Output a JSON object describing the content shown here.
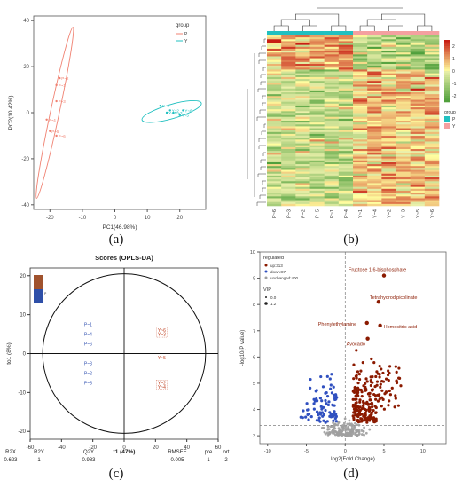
{
  "captions": {
    "a": "(a)",
    "b": "(b)",
    "c": "(c)",
    "d": "(d)"
  },
  "chart_data": [
    {
      "panel": "a",
      "type": "scatter",
      "title": "",
      "xlabel": "PC1(46.98%)",
      "ylabel": "PC2(10.42%)",
      "xlim": [
        -25,
        28
      ],
      "ylim": [
        -42,
        42
      ],
      "x_ticks": [
        -20,
        -10,
        0,
        10,
        20
      ],
      "y_ticks": [
        -40,
        -20,
        0,
        20,
        40
      ],
      "legend": {
        "title": "group",
        "position": "top-right"
      },
      "series": [
        {
          "name": "P",
          "color": "#f08070",
          "points": [
            {
              "x": -18,
              "y": 12,
              "label": "P~1"
            },
            {
              "x": -17,
              "y": 15,
              "label": "P~2"
            },
            {
              "x": -18,
              "y": 5,
              "label": "P~3"
            },
            {
              "x": -21,
              "y": -3,
              "label": "P~4"
            },
            {
              "x": -20,
              "y": -8,
              "label": "P~5"
            },
            {
              "x": -18,
              "y": -10,
              "label": "P~6"
            }
          ]
        },
        {
          "name": "Y",
          "color": "#20c0c0",
          "points": [
            {
              "x": 14,
              "y": 3,
              "label": "Y~1"
            },
            {
              "x": 17,
              "y": 1,
              "label": "Y~2"
            },
            {
              "x": 18,
              "y": 0,
              "label": "Y~3"
            },
            {
              "x": 16,
              "y": 0,
              "label": "Y~4"
            },
            {
              "x": 20,
              "y": -1,
              "label": "Y~5"
            },
            {
              "x": 21,
              "y": 1,
              "label": "Y~6"
            }
          ]
        }
      ]
    },
    {
      "panel": "b",
      "type": "heatmap",
      "columns": [
        "P~6",
        "P~3",
        "P~2",
        "P~5",
        "P~1",
        "P~4",
        "Y~1",
        "Y~4",
        "Y~2",
        "Y~3",
        "Y~5",
        "Y~6"
      ],
      "groups": [
        "P",
        "P",
        "P",
        "P",
        "P",
        "P",
        "Y",
        "Y",
        "Y",
        "Y",
        "Y",
        "Y"
      ],
      "colorbar_ticks": [
        2,
        1,
        0,
        -1,
        -2
      ],
      "legend": {
        "title": "group",
        "items": [
          {
            "name": "P",
            "color": "#20c0c0"
          },
          {
            "name": "Y",
            "color": "#f4a0a0"
          }
        ]
      }
    },
    {
      "panel": "c",
      "type": "scatter",
      "title": "Scores (OPLS-DA)",
      "xlabel": "t1 (47%)",
      "ylabel": "to1 (8%)",
      "xlim": [
        -60,
        60
      ],
      "ylim": [
        -22,
        22
      ],
      "x_ticks": [
        -60,
        -40,
        -20,
        0,
        20,
        40,
        60
      ],
      "y_ticks": [
        -20,
        -10,
        0,
        10,
        20
      ],
      "series": [
        {
          "name": "P",
          "color": "#3050b0",
          "points": [
            {
              "x": -23,
              "y": 7.5,
              "label": "P~1"
            },
            {
              "x": -23,
              "y": 5,
              "label": "P~4"
            },
            {
              "x": -23,
              "y": 2.5,
              "label": "P~6"
            },
            {
              "x": -23,
              "y": -2.5,
              "label": "P~3"
            },
            {
              "x": -23,
              "y": -5,
              "label": "P~2"
            },
            {
              "x": -23,
              "y": -7.5,
              "label": "P~5"
            }
          ]
        },
        {
          "name": "Y",
          "color": "#c04020",
          "points": [
            {
              "x": 24,
              "y": 6,
              "label": "Y~6"
            },
            {
              "x": 24,
              "y": 5,
              "label": "Y~3"
            },
            {
              "x": 24,
              "y": -1,
              "label": "Y~5"
            },
            {
              "x": 24,
              "y": -7.5,
              "label": "Y~2"
            },
            {
              "x": 24,
              "y": -8.5,
              "label": "Y~4"
            }
          ]
        }
      ],
      "stats_headers": [
        "R2X",
        "R2Y",
        "Q2Y",
        "RMSEE",
        "pre",
        "ort"
      ],
      "stats_values": [
        "0.623",
        "1",
        "0.983",
        "0.005",
        "1",
        "2"
      ]
    },
    {
      "panel": "d",
      "type": "scatter",
      "title": "",
      "xlabel": "log2(Fold Change)",
      "ylabel": "-log10(P value)",
      "xlim": [
        -11,
        13
      ],
      "ylim": [
        2.7,
        10
      ],
      "x_ticks": [
        -10,
        -5,
        0,
        5,
        10
      ],
      "y_ticks": [
        3,
        4,
        5,
        6,
        7,
        8,
        9,
        10
      ],
      "legend": {
        "title": "regulated",
        "items": [
          {
            "name": "up:313",
            "color": "#8b1a00"
          },
          {
            "name": "down:87",
            "color": "#3050c0"
          },
          {
            "name": "unchanged:400",
            "color": "#9e9e9e"
          }
        ],
        "vip_title": "VIP",
        "vip_items": [
          "0.0",
          "1.2"
        ]
      },
      "annotations": [
        {
          "label": "Fructose 1,6-bisphosphate",
          "x": 5.0,
          "y": 9.1
        },
        {
          "label": "Tetrahydrodipicolinate",
          "x": 4.3,
          "y": 8.1
        },
        {
          "label": "Phenylethylamine",
          "x": 2.8,
          "y": 7.3
        },
        {
          "label": "Homocitric acid",
          "x": 4.5,
          "y": 7.2
        },
        {
          "label": "Avocado",
          "x": 2.9,
          "y": 6.7
        }
      ]
    }
  ]
}
